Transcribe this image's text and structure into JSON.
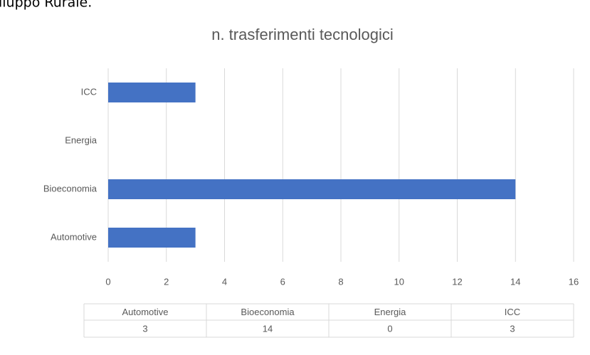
{
  "caption": "iluppo Rurale.",
  "chart_data": {
    "type": "hbar",
    "title": "n. trasferimenti tecnologici",
    "categories": [
      "Automotive",
      "Bioeconomia",
      "Energia",
      "ICC"
    ],
    "values": [
      3,
      14,
      0,
      3
    ],
    "color": "#4472c4",
    "xlim": [
      0,
      16
    ],
    "xticks": [
      0,
      2,
      4,
      6,
      8,
      10,
      12,
      14,
      16
    ],
    "grid": true,
    "data_table": true
  }
}
